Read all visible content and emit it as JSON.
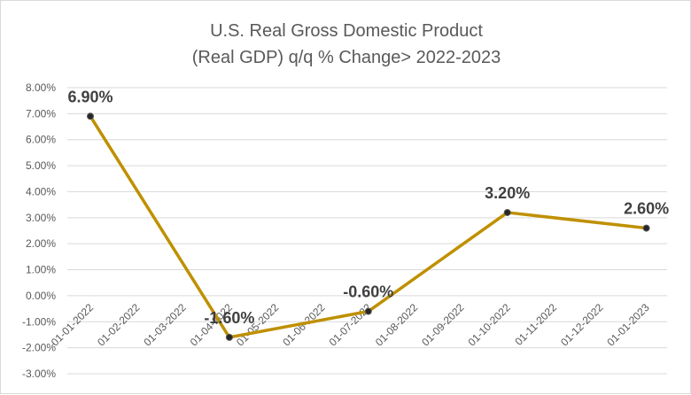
{
  "chart_data": {
    "type": "line",
    "title": [
      "U.S. Real Gross Domestic Product",
      "(Real GDP) q/q % Change> 2022-2023"
    ],
    "x": [
      "01-01-2022",
      "01-02-2022",
      "01-03-2022",
      "01-04-2022",
      "01-05-2022",
      "01-06-2022",
      "01-07-2022",
      "01-08-2022",
      "01-09-2022",
      "01-10-2022",
      "01-11-2022",
      "01-12-2022",
      "01-01-2023"
    ],
    "series": [
      {
        "points": [
          {
            "x": "01-01-2022",
            "y": 6.9,
            "label": "6.90%"
          },
          {
            "x": "01-04-2022",
            "y": -1.6,
            "label": "-1.60%"
          },
          {
            "x": "01-07-2022",
            "y": -0.6,
            "label": "-0.60%"
          },
          {
            "x": "01-10-2022",
            "y": 3.2,
            "label": "3.20%"
          },
          {
            "x": "01-01-2023",
            "y": 2.6,
            "label": "2.60%"
          }
        ]
      }
    ],
    "y_ticks": [
      "8.00%",
      "7.00%",
      "6.00%",
      "5.00%",
      "4.00%",
      "3.00%",
      "2.00%",
      "1.00%",
      "0.00%",
      "-1.00%",
      "-2.00%",
      "-3.00%"
    ],
    "ylim": [
      -3,
      8
    ],
    "grid": true,
    "legend": "none",
    "line_color": "#bf9000",
    "marker_color": "#262626"
  }
}
